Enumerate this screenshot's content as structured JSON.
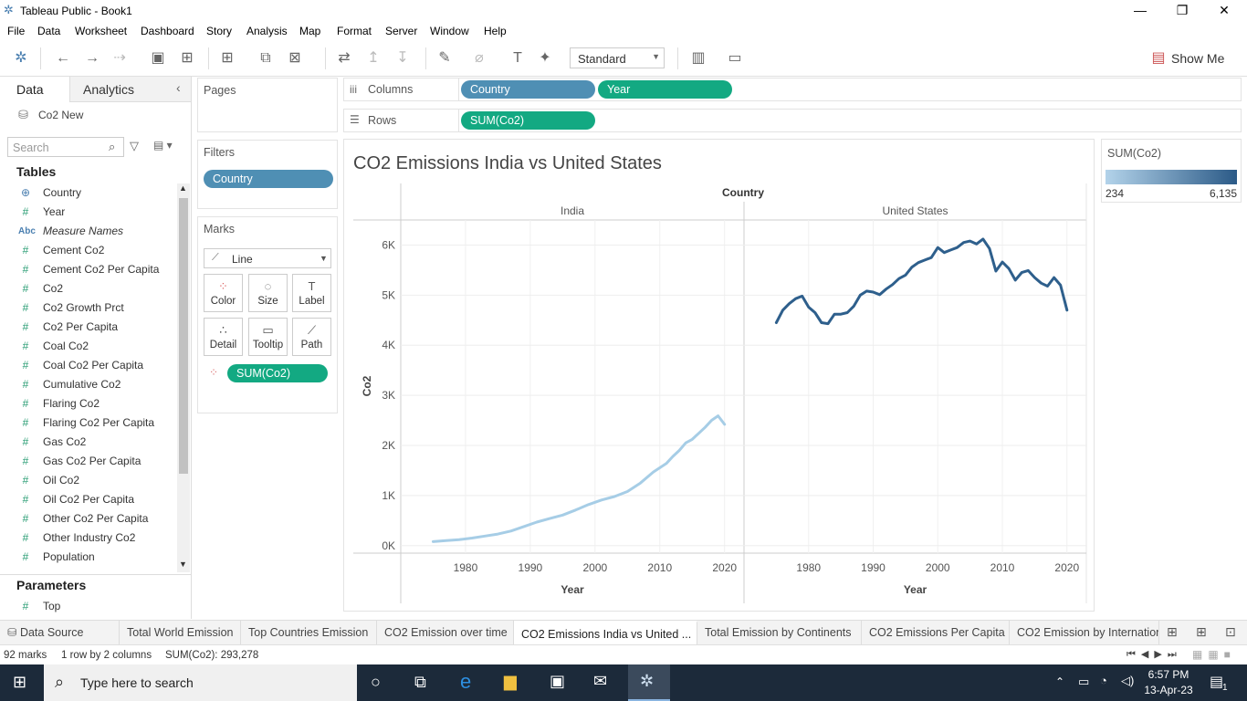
{
  "window": {
    "title": "Tableau Public - Book1",
    "minimize": "—",
    "restore": "❐",
    "close": "✕"
  },
  "menu": [
    "File",
    "Data",
    "Worksheet",
    "Dashboard",
    "Story",
    "Analysis",
    "Map",
    "Format",
    "Server",
    "Window",
    "Help"
  ],
  "toolbar": {
    "fit_dropdown": "Standard",
    "show_me": "Show Me"
  },
  "left_panel": {
    "tab_data": "Data",
    "tab_analytics": "Analytics",
    "datasource": "Co2 New",
    "search_placeholder": "Search",
    "tables_header": "Tables",
    "fields": [
      {
        "icon": "globe-icon",
        "glyph": "⊕",
        "label": "Country",
        "italic": false
      },
      {
        "icon": "number-icon",
        "glyph": "#",
        "label": "Year",
        "italic": false
      },
      {
        "icon": "abc-icon",
        "glyph": "Abc",
        "label": "Measure Names",
        "italic": true
      },
      {
        "icon": "number-icon",
        "glyph": "#",
        "label": "Cement Co2",
        "italic": false
      },
      {
        "icon": "number-icon",
        "glyph": "#",
        "label": "Cement Co2 Per Capita",
        "italic": false
      },
      {
        "icon": "number-icon",
        "glyph": "#",
        "label": "Co2",
        "italic": false
      },
      {
        "icon": "number-icon",
        "glyph": "#",
        "label": "Co2 Growth Prct",
        "italic": false
      },
      {
        "icon": "number-icon",
        "glyph": "#",
        "label": "Co2 Per Capita",
        "italic": false
      },
      {
        "icon": "number-icon",
        "glyph": "#",
        "label": "Coal Co2",
        "italic": false
      },
      {
        "icon": "number-icon",
        "glyph": "#",
        "label": "Coal Co2 Per Capita",
        "italic": false
      },
      {
        "icon": "number-icon",
        "glyph": "#",
        "label": "Cumulative Co2",
        "italic": false
      },
      {
        "icon": "number-icon",
        "glyph": "#",
        "label": "Flaring Co2",
        "italic": false
      },
      {
        "icon": "number-icon",
        "glyph": "#",
        "label": "Flaring Co2 Per Capita",
        "italic": false
      },
      {
        "icon": "number-icon",
        "glyph": "#",
        "label": "Gas Co2",
        "italic": false
      },
      {
        "icon": "number-icon",
        "glyph": "#",
        "label": "Gas Co2 Per Capita",
        "italic": false
      },
      {
        "icon": "number-icon",
        "glyph": "#",
        "label": "Oil Co2",
        "italic": false
      },
      {
        "icon": "number-icon",
        "glyph": "#",
        "label": "Oil Co2 Per Capita",
        "italic": false
      },
      {
        "icon": "number-icon",
        "glyph": "#",
        "label": "Other Co2 Per Capita",
        "italic": false
      },
      {
        "icon": "number-icon",
        "glyph": "#",
        "label": "Other Industry Co2",
        "italic": false
      },
      {
        "icon": "number-icon",
        "glyph": "#",
        "label": "Population",
        "italic": false
      }
    ],
    "parameters_header": "Parameters",
    "parameters": [
      {
        "label": "Top"
      }
    ]
  },
  "shelves": {
    "pages": "Pages",
    "filters": "Filters",
    "filter_pill": "Country",
    "marks": "Marks",
    "mark_type": "Line",
    "mark_cards": [
      "Color",
      "Size",
      "Label",
      "Detail",
      "Tooltip",
      "Path"
    ],
    "marks_pill": "SUM(Co2)",
    "columns_label": "Columns",
    "columns_pills": [
      "Country",
      "Year"
    ],
    "rows_label": "Rows",
    "rows_pill": "SUM(Co2)"
  },
  "legend": {
    "title": "SUM(Co2)",
    "min": "234",
    "max": "6,135",
    "color_low": "#b3d3ea",
    "color_high": "#2b5a87"
  },
  "chart_data": {
    "type": "line",
    "title": "CO2 Emissions India vs United States",
    "header": "Country",
    "ylabel": "Co2",
    "xlabel": "Year",
    "ylim": [
      -150,
      6500
    ],
    "yticks": [
      0,
      1000,
      2000,
      3000,
      4000,
      5000,
      6000
    ],
    "ytick_labels": [
      "0K",
      "1K",
      "2K",
      "3K",
      "4K",
      "5K",
      "6K"
    ],
    "xlim": [
      1970,
      2023
    ],
    "xticks": [
      1980,
      1990,
      2000,
      2010,
      2020
    ],
    "panels": [
      {
        "name": "India",
        "color": "#a6cde6",
        "points": [
          [
            1975,
            80
          ],
          [
            1977,
            100
          ],
          [
            1979,
            120
          ],
          [
            1981,
            150
          ],
          [
            1983,
            190
          ],
          [
            1985,
            230
          ],
          [
            1987,
            290
          ],
          [
            1989,
            380
          ],
          [
            1991,
            470
          ],
          [
            1993,
            540
          ],
          [
            1995,
            610
          ],
          [
            1997,
            710
          ],
          [
            1999,
            820
          ],
          [
            2001,
            910
          ],
          [
            2003,
            980
          ],
          [
            2005,
            1080
          ],
          [
            2007,
            1250
          ],
          [
            2009,
            1470
          ],
          [
            2011,
            1640
          ],
          [
            2012,
            1780
          ],
          [
            2013,
            1900
          ],
          [
            2014,
            2050
          ],
          [
            2015,
            2120
          ],
          [
            2016,
            2240
          ],
          [
            2017,
            2360
          ],
          [
            2018,
            2500
          ],
          [
            2019,
            2590
          ],
          [
            2020,
            2420
          ]
        ]
      },
      {
        "name": "United States",
        "color": "#2e5f8c",
        "points": [
          [
            1975,
            4450
          ],
          [
            1976,
            4700
          ],
          [
            1977,
            4830
          ],
          [
            1978,
            4930
          ],
          [
            1979,
            4980
          ],
          [
            1980,
            4760
          ],
          [
            1981,
            4650
          ],
          [
            1982,
            4450
          ],
          [
            1983,
            4430
          ],
          [
            1984,
            4620
          ],
          [
            1985,
            4620
          ],
          [
            1986,
            4650
          ],
          [
            1987,
            4780
          ],
          [
            1988,
            5000
          ],
          [
            1989,
            5080
          ],
          [
            1990,
            5060
          ],
          [
            1991,
            5010
          ],
          [
            1992,
            5120
          ],
          [
            1993,
            5210
          ],
          [
            1994,
            5330
          ],
          [
            1995,
            5400
          ],
          [
            1996,
            5560
          ],
          [
            1997,
            5650
          ],
          [
            1998,
            5700
          ],
          [
            1999,
            5750
          ],
          [
            2000,
            5950
          ],
          [
            2001,
            5850
          ],
          [
            2002,
            5900
          ],
          [
            2003,
            5950
          ],
          [
            2004,
            6050
          ],
          [
            2005,
            6080
          ],
          [
            2006,
            6020
          ],
          [
            2007,
            6120
          ],
          [
            2008,
            5930
          ],
          [
            2009,
            5480
          ],
          [
            2010,
            5660
          ],
          [
            2011,
            5530
          ],
          [
            2012,
            5300
          ],
          [
            2013,
            5450
          ],
          [
            2014,
            5490
          ],
          [
            2015,
            5350
          ],
          [
            2016,
            5240
          ],
          [
            2017,
            5180
          ],
          [
            2018,
            5350
          ],
          [
            2019,
            5200
          ],
          [
            2020,
            4700
          ]
        ]
      }
    ]
  },
  "sheet_tabs": [
    {
      "label": "Data Source",
      "active": false
    },
    {
      "label": "Total World Emission",
      "active": false
    },
    {
      "label": "Top Countries Emission",
      "active": false
    },
    {
      "label": "CO2 Emission over time",
      "active": false
    },
    {
      "label": "CO2 Emissions India vs United ...",
      "active": true
    },
    {
      "label": "Total Emission by Continents",
      "active": false
    },
    {
      "label": "CO2 Emissions Per Capita",
      "active": false
    },
    {
      "label": "CO2 Emission by Internation",
      "active": false
    }
  ],
  "status": {
    "marks": "92 marks",
    "rows_cols": "1 row by 2 columns",
    "sum": "SUM(Co2): 293,278"
  },
  "taskbar": {
    "search_placeholder": "Type here to search",
    "time": "6:57 PM",
    "date": "13-Apr-23",
    "notifications": "1"
  }
}
